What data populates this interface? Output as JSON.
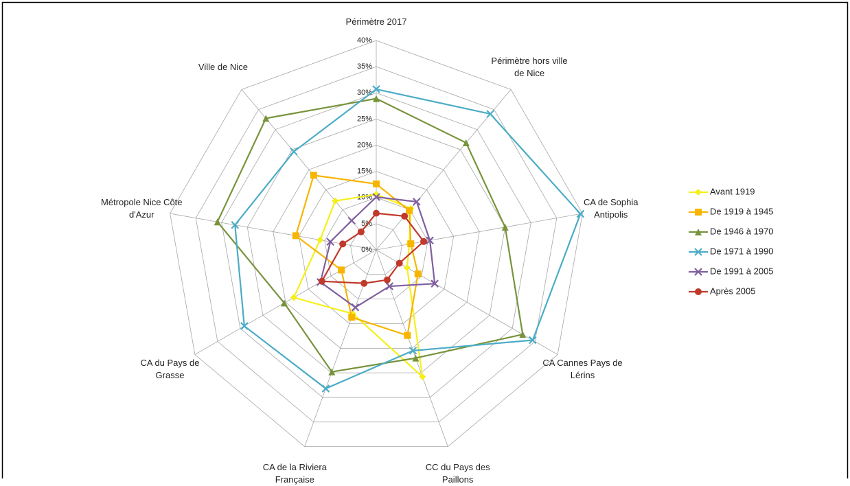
{
  "chart_data": {
    "type": "radar",
    "categories": [
      "Périmètre 2017",
      "Périmètre hors ville de Nice",
      "CA de Sophia Antipolis",
      "CA Cannes Pays de Lérins",
      "CC du Pays des Paillons",
      "CA de la Riviera Française",
      "CA du Pays de Grasse",
      "Métropole Nice Côte d'Azur",
      "Ville de Nice"
    ],
    "ylim": [
      0,
      40
    ],
    "yticks": [
      {
        "value": 0,
        "label": "0%"
      },
      {
        "value": 5,
        "label": "5%"
      },
      {
        "value": 10,
        "label": "10%"
      },
      {
        "value": 15,
        "label": "15%"
      },
      {
        "value": 20,
        "label": "20%"
      },
      {
        "value": 25,
        "label": "25%"
      },
      {
        "value": 30,
        "label": "30%"
      },
      {
        "value": 35,
        "label": "35%"
      },
      {
        "value": 40,
        "label": "40%"
      }
    ],
    "grid": true,
    "legend": "right",
    "series": [
      {
        "name": "Avant 1919",
        "color": "#f5f01a",
        "marker": "diamond",
        "values": [
          10.6,
          10.3,
          6.4,
          6.8,
          25.8,
          13.0,
          18.2,
          10.9,
          12.2
        ]
      },
      {
        "name": "De 1919 à 1945",
        "color": "#f7b500",
        "marker": "square",
        "values": [
          12.6,
          9.8,
          6.7,
          9.2,
          17.4,
          13.7,
          7.7,
          15.6,
          18.6
        ]
      },
      {
        "name": "De 1946 à 1970",
        "color": "#77933c",
        "marker": "triangle",
        "values": [
          28.9,
          26.7,
          25.0,
          32.3,
          22.0,
          24.8,
          20.3,
          30.8,
          32.8
        ]
      },
      {
        "name": "De 1971 à 1990",
        "color": "#4bacc6",
        "marker": "x",
        "values": [
          30.7,
          33.9,
          39.6,
          34.5,
          20.5,
          28.2,
          29.1,
          27.4,
          24.5
        ]
      },
      {
        "name": "De 1991 à 2005",
        "color": "#7f5fa0",
        "marker": "x",
        "values": [
          10.1,
          12.0,
          10.4,
          12.9,
          7.4,
          11.7,
          12.3,
          8.9,
          7.3
        ]
      },
      {
        "name": "Après 2005",
        "color": "#c0392b",
        "marker": "circle",
        "values": [
          7.0,
          8.4,
          9.2,
          5.1,
          6.1,
          6.8,
          12.0,
          6.5,
          4.5
        ]
      }
    ]
  }
}
